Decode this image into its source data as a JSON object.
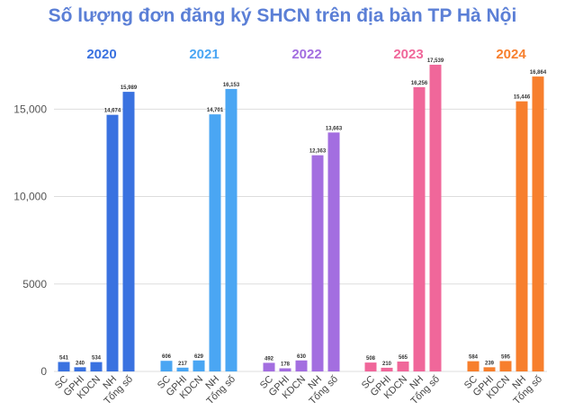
{
  "title": "Số lượng đơn đăng ký SHCN trên địa bàn TP Hà Nội",
  "colors": {
    "title": "#5b7fd6",
    "grid": "#dddddd",
    "text": "#555555"
  },
  "chart_data": {
    "type": "bar",
    "title": "Số lượng đơn đăng ký SHCN trên địa bàn TP Hà Nội",
    "categories": [
      "SC",
      "GPHI",
      "KDCN",
      "NH",
      "Tổng số"
    ],
    "ylim": [
      0,
      18000
    ],
    "yticks": [
      0,
      5000,
      10000,
      15000
    ],
    "ytick_labels": [
      "0",
      "5000",
      "10,000",
      "15,000"
    ],
    "grid": true,
    "series": [
      {
        "name": "2020",
        "color": "#3a72e0",
        "values": [
          541,
          240,
          534,
          14674,
          15989
        ],
        "labels": [
          "541",
          "240",
          "534",
          "14,674",
          "15,989"
        ]
      },
      {
        "name": "2021",
        "color": "#4aa6f3",
        "values": [
          606,
          217,
          629,
          14701,
          16153
        ],
        "labels": [
          "606",
          "217",
          "629",
          "14,701",
          "16,153"
        ]
      },
      {
        "name": "2022",
        "color": "#a36ee0",
        "values": [
          492,
          178,
          630,
          12363,
          13663
        ],
        "labels": [
          "492",
          "178",
          "630",
          "12,363",
          "13,663"
        ]
      },
      {
        "name": "2023",
        "color": "#f0679a",
        "values": [
          508,
          210,
          565,
          16256,
          17539
        ],
        "labels": [
          "508",
          "210",
          "565",
          "16,256",
          "17,539"
        ]
      },
      {
        "name": "2024",
        "color": "#f77f2d",
        "values": [
          584,
          239,
          595,
          15446,
          16864
        ],
        "labels": [
          "584",
          "239",
          "595",
          "15,446",
          "16,864"
        ]
      }
    ]
  }
}
